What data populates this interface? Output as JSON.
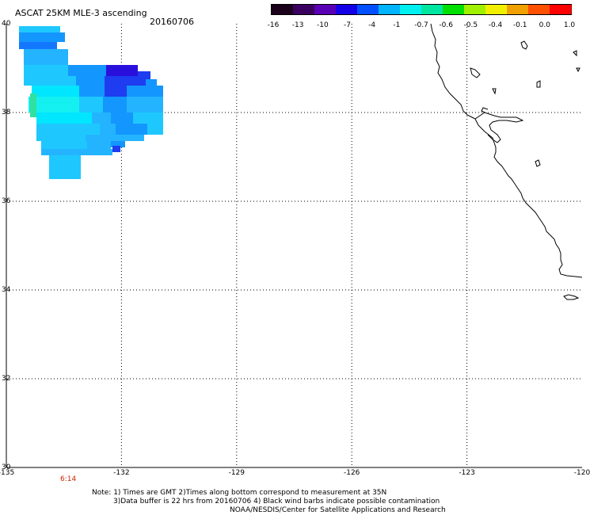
{
  "header": {
    "title": "ASCAT 25KM MLE-3 ascending",
    "date": "20160706"
  },
  "colorbar": {
    "labels": [
      "-16",
      "-13",
      "-10",
      "-7",
      "-4",
      "-1",
      "-0.7",
      "-0.6",
      "-0.5",
      "-0.4",
      "-0.1",
      "0.0",
      "1.0"
    ],
    "colors": [
      "#1a001a",
      "#3a0060",
      "#5a00b4",
      "#1400e6",
      "#0050ff",
      "#00b4ff",
      "#00f0f0",
      "#00e6a0",
      "#00e000",
      "#a0f000",
      "#f0f000",
      "#f0a000",
      "#ff5000",
      "#ff0000"
    ]
  },
  "map": {
    "lon_ticks": [
      "-135",
      "-132",
      "-129",
      "-126",
      "-123",
      "-120"
    ],
    "lat_ticks": [
      "40",
      "38",
      "36",
      "34",
      "32",
      "30"
    ],
    "lon_range": [
      -135,
      -120
    ],
    "lat_range": [
      30,
      40
    ],
    "grid": true,
    "coastline_color": "#000000"
  },
  "swath": {
    "time_label": "6:14",
    "time_color": "#cc2200"
  },
  "notes": {
    "line1": "Note: 1) Times are GMT 2)Times along bottom correspond to measurement at 35N",
    "line2": "3)Data buffer is 22 hrs from 20160706 4) Black wind barbs indicate possible contamination",
    "line3": "NOAA/NESDIS/Center for Satellite Applications and Research"
  }
}
